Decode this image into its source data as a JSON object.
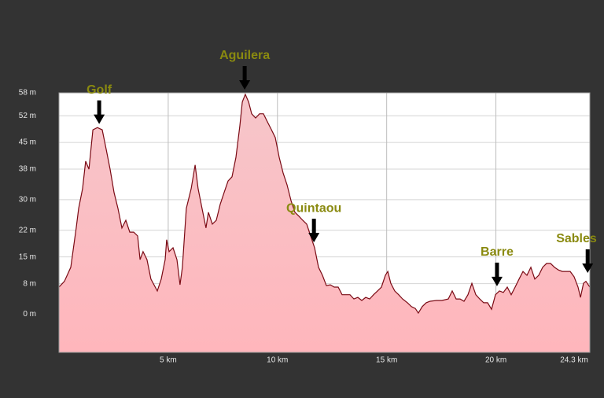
{
  "chart_data": {
    "type": "area",
    "x": [
      0,
      0.25,
      0.54,
      0.79,
      0.9,
      1.08,
      1.22,
      1.37,
      1.55,
      1.76,
      1.98,
      2.16,
      2.34,
      2.52,
      2.7,
      2.88,
      3.06,
      3.24,
      3.42,
      3.6,
      3.71,
      3.85,
      4.03,
      4.21,
      4.5,
      4.68,
      4.86,
      4.93,
      5.04,
      5.22,
      5.4,
      5.54,
      5.65,
      5.83,
      6.05,
      6.23,
      6.37,
      6.55,
      6.73,
      6.84,
      7.02,
      7.2,
      7.38,
      7.56,
      7.74,
      7.92,
      8.1,
      8.28,
      8.39,
      8.53,
      8.68,
      8.82,
      9.0,
      9.18,
      9.36,
      9.54,
      9.72,
      9.9,
      10.08,
      10.26,
      10.44,
      10.62,
      10.8,
      10.98,
      11.16,
      11.34,
      11.52,
      11.7,
      11.88,
      12.06,
      12.24,
      12.42,
      12.6,
      12.78,
      12.96,
      13.14,
      13.32,
      13.5,
      13.68,
      13.86,
      14.04,
      14.22,
      14.4,
      14.58,
      14.76,
      14.94,
      15.05,
      15.19,
      15.37,
      15.55,
      15.73,
      15.95,
      16.13,
      16.31,
      16.45,
      16.63,
      16.81,
      16.99,
      17.28,
      17.53,
      17.82,
      18.0,
      18.18,
      18.36,
      18.54,
      18.72,
      18.9,
      19.08,
      19.26,
      19.44,
      19.62,
      19.8,
      19.98,
      20.16,
      20.34,
      20.52,
      20.7,
      20.88,
      21.06,
      21.24,
      21.42,
      21.6,
      21.78,
      21.96,
      22.14,
      22.32,
      22.5,
      22.68,
      22.86,
      23.04,
      23.22,
      23.4,
      23.58,
      23.76,
      23.87,
      24.01,
      24.12,
      24.3
    ],
    "values": [
      7.1,
      8.6,
      12.3,
      22.6,
      27.7,
      32.9,
      40.1,
      38.0,
      48.3,
      48.9,
      48.3,
      43.2,
      38.0,
      31.9,
      27.7,
      22.6,
      24.6,
      21.5,
      21.5,
      20.5,
      14.3,
      16.4,
      14.3,
      9.2,
      6.1,
      9.2,
      14.3,
      19.5,
      16.4,
      17.4,
      14.3,
      7.7,
      12.3,
      27.7,
      32.9,
      39.1,
      32.9,
      27.7,
      22.6,
      26.7,
      23.6,
      24.6,
      28.8,
      31.9,
      34.9,
      36.0,
      41.1,
      49.4,
      55.6,
      57.6,
      55.6,
      52.5,
      51.4,
      52.5,
      52.5,
      50.4,
      48.4,
      46.3,
      41.1,
      37.0,
      33.9,
      29.8,
      26.7,
      25.7,
      24.6,
      23.6,
      20.5,
      17.4,
      12.3,
      10.2,
      7.5,
      7.7,
      7.1,
      7.1,
      5.1,
      5.1,
      5.1,
      4.0,
      4.4,
      3.6,
      4.4,
      4.0,
      5.1,
      6.1,
      7.1,
      10.2,
      11.2,
      8.1,
      6.1,
      5.1,
      4.0,
      3.0,
      2.0,
      1.5,
      0.3,
      2.0,
      3.0,
      3.4,
      3.6,
      3.6,
      4.0,
      6.1,
      4.0,
      4.0,
      3.4,
      5.1,
      8.1,
      5.1,
      4.0,
      3.0,
      3.0,
      1.3,
      5.1,
      6.1,
      5.7,
      7.1,
      5.1,
      7.1,
      9.2,
      11.2,
      10.2,
      12.3,
      9.2,
      10.2,
      12.3,
      13.3,
      13.3,
      12.3,
      11.6,
      11.2,
      11.2,
      11.2,
      9.8,
      7.1,
      4.4,
      8.1,
      8.6,
      7.1
    ],
    "color": "#7a0a14",
    "xlim": [
      0,
      24.3
    ],
    "ylim": [
      -10,
      58
    ],
    "xticks": [
      {
        "value": 5,
        "label": "5 km"
      },
      {
        "value": 10,
        "label": "10 km"
      },
      {
        "value": 15,
        "label": "15 km"
      },
      {
        "value": 20,
        "label": "20 km"
      },
      {
        "value": 24.3,
        "label": "24.3 km"
      }
    ],
    "yticks": [
      {
        "value": 0,
        "label": "0 m"
      },
      {
        "value": 8,
        "label": "8 m"
      },
      {
        "value": 15,
        "label": "15 m"
      },
      {
        "value": 22,
        "label": "22 m"
      },
      {
        "value": 30,
        "label": "30 m"
      },
      {
        "value": 38,
        "label": "38 m"
      },
      {
        "value": 45,
        "label": "45 m"
      },
      {
        "value": 52,
        "label": "52 m"
      },
      {
        "value": 58,
        "label": "58 m"
      }
    ],
    "grid": true,
    "annotations": [
      {
        "text": "Golf",
        "x": 1.84,
        "y": 49
      },
      {
        "text": "Aguilera",
        "x": 8.5,
        "y": 58
      },
      {
        "text": "Quintaou",
        "x": 11.67,
        "y": 18
      },
      {
        "text": "Barre",
        "x": 20.05,
        "y": 6.5
      },
      {
        "text": "Sables",
        "x": 24.2,
        "y": 10
      }
    ]
  }
}
